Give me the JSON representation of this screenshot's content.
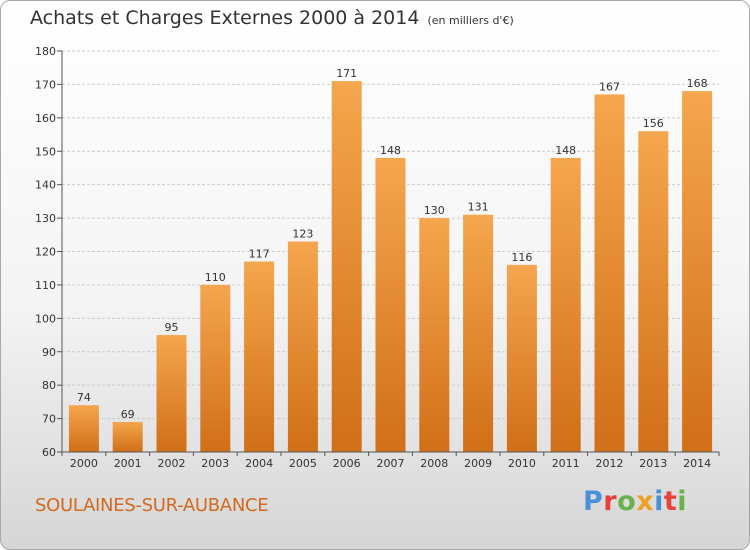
{
  "header": {
    "title": "Achats et Charges Externes 2000 à 2014",
    "unit": "(en milliers d'€)"
  },
  "footer": {
    "commune": "SOULAINES-SUR-AUBANCE",
    "logo_letters": [
      "P",
      "r",
      "o",
      "x",
      "i",
      "t",
      "i"
    ]
  },
  "colors": {
    "bar_top": "#f5a64e",
    "bar_bottom": "#d06f18",
    "grid": "#cccccc",
    "commune_text": "#d2691e"
  },
  "chart_data": {
    "type": "bar",
    "title": "Achats et Charges Externes 2000 à 2014",
    "subtitle": "(en milliers d'€)",
    "categories": [
      "2000",
      "2001",
      "2002",
      "2003",
      "2004",
      "2005",
      "2006",
      "2007",
      "2008",
      "2009",
      "2010",
      "2011",
      "2012",
      "2013",
      "2014"
    ],
    "values": [
      74,
      69,
      95,
      110,
      117,
      123,
      171,
      148,
      130,
      131,
      116,
      148,
      167,
      156,
      168
    ],
    "ylim": [
      60,
      180
    ],
    "yticks": [
      60,
      70,
      80,
      90,
      100,
      110,
      120,
      130,
      140,
      150,
      160,
      170,
      180
    ],
    "grid": true,
    "data_labels": true
  }
}
